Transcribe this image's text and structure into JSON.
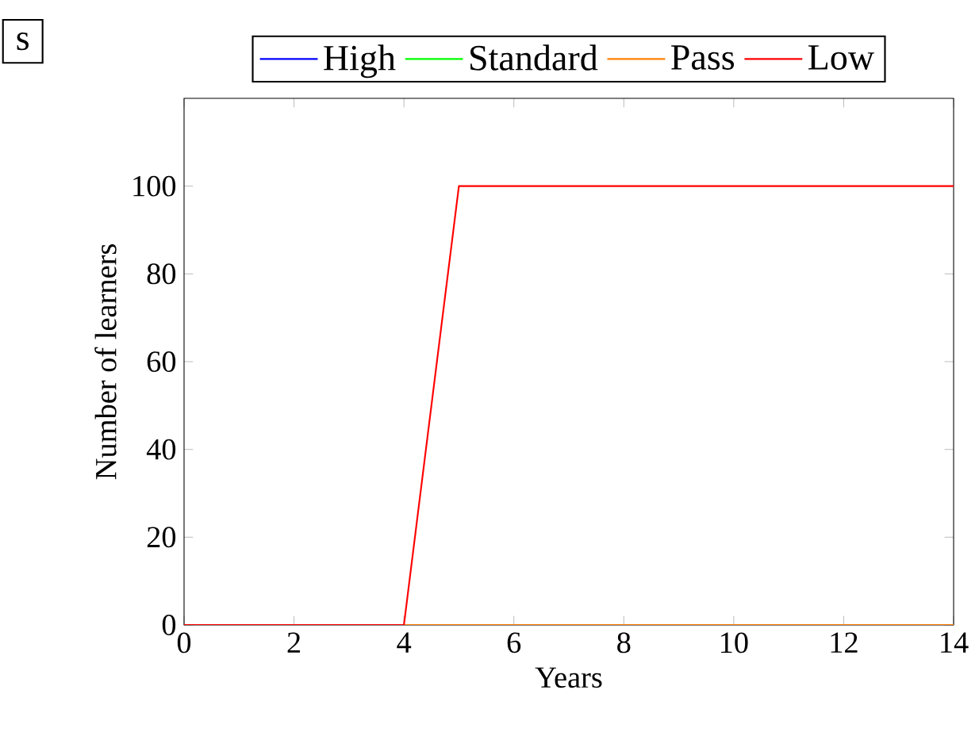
{
  "chart_data": {
    "type": "line",
    "xlabel": "Years",
    "ylabel": "Number of learners",
    "annotations": [
      "s"
    ],
    "x": [
      0,
      1,
      2,
      3,
      4,
      5,
      6,
      7,
      8,
      9,
      10,
      11,
      12,
      13,
      14
    ],
    "series": [
      {
        "name": "High",
        "color": "#0000ff",
        "values": [
          null,
          null,
          null,
          null,
          null,
          null,
          null,
          null,
          null,
          null,
          null,
          null,
          null,
          null,
          null
        ]
      },
      {
        "name": "Standard",
        "color": "#00ff00",
        "values": [
          null,
          null,
          null,
          null,
          null,
          null,
          null,
          null,
          null,
          null,
          null,
          null,
          null,
          null,
          null
        ]
      },
      {
        "name": "Pass",
        "color": "#ff8000",
        "values": [
          null,
          null,
          null,
          null,
          0,
          0,
          0,
          0,
          0,
          0,
          0,
          0,
          0,
          0,
          0
        ]
      },
      {
        "name": "Low",
        "color": "#ff0000",
        "values": [
          0,
          0,
          0,
          0,
          0,
          100,
          100,
          100,
          100,
          100,
          100,
          100,
          100,
          100,
          100
        ]
      }
    ],
    "xlim": [
      0,
      14
    ],
    "xticks": [
      0,
      2,
      4,
      6,
      8,
      10,
      12,
      14
    ],
    "ylim": [
      0,
      120
    ],
    "yticks": [
      0,
      20,
      40,
      60,
      80,
      100
    ],
    "legend": "top",
    "grid": false,
    "marker": "none",
    "line_style": "solid"
  }
}
